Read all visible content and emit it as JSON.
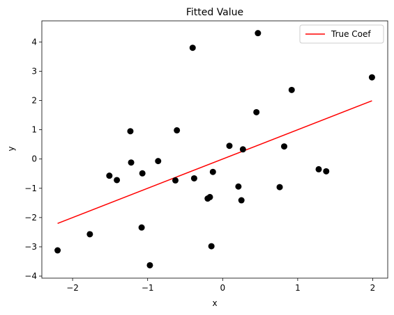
{
  "chart_data": {
    "type": "scatter",
    "title": "Fitted Value",
    "xlabel": "x",
    "ylabel": "y",
    "xlim": [
      -2.41,
      2.2
    ],
    "ylim": [
      -4.07,
      4.72
    ],
    "xticks": [
      -2,
      -1,
      0,
      1,
      2
    ],
    "xtick_labels": [
      "−2",
      "−1",
      "0",
      "1",
      "2"
    ],
    "yticks": [
      -4,
      -3,
      -2,
      -1,
      0,
      1,
      2,
      3,
      4
    ],
    "ytick_labels": [
      "−4",
      "−3",
      "−2",
      "−1",
      "0",
      "1",
      "2",
      "3",
      "4"
    ],
    "grid": false,
    "legend_position": "top-right",
    "series": [
      {
        "kind": "scatter",
        "color": "#000000",
        "points": [
          [
            -2.2,
            -3.12
          ],
          [
            -1.77,
            -2.57
          ],
          [
            -1.51,
            -0.57
          ],
          [
            -1.41,
            -0.72
          ],
          [
            -1.23,
            0.95
          ],
          [
            -1.22,
            -0.12
          ],
          [
            -1.07,
            -0.49
          ],
          [
            -1.08,
            -2.34
          ],
          [
            -0.97,
            -3.63
          ],
          [
            -0.86,
            -0.07
          ],
          [
            -0.63,
            -0.73
          ],
          [
            -0.61,
            0.98
          ],
          [
            -0.4,
            3.8
          ],
          [
            -0.38,
            -0.66
          ],
          [
            -0.2,
            -1.35
          ],
          [
            -0.17,
            -1.3
          ],
          [
            -0.15,
            -2.98
          ],
          [
            -0.13,
            -0.44
          ],
          [
            0.09,
            0.45
          ],
          [
            0.21,
            -0.94
          ],
          [
            0.25,
            -1.41
          ],
          [
            0.27,
            0.33
          ],
          [
            0.45,
            1.6
          ],
          [
            0.47,
            4.3
          ],
          [
            0.76,
            -0.96
          ],
          [
            0.82,
            0.43
          ],
          [
            0.92,
            2.36
          ],
          [
            1.28,
            -0.35
          ],
          [
            1.38,
            -0.42
          ],
          [
            1.99,
            2.79
          ]
        ]
      },
      {
        "kind": "line",
        "name": "True Coef",
        "color": "#ff0000",
        "points": [
          [
            -2.2,
            -2.2
          ],
          [
            1.99,
            1.99
          ]
        ]
      }
    ]
  }
}
